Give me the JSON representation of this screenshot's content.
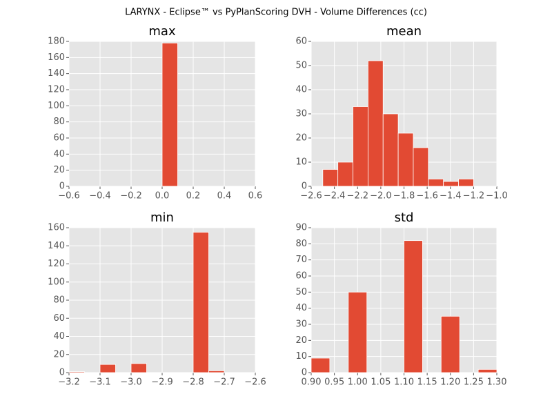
{
  "title": "LARYNX - Eclipse™ vs PyPlanScoring DVH - Volume Differences (cc)",
  "chart_data": [
    {
      "type": "histogram",
      "title": "max",
      "bins": [
        -0.5,
        -0.4,
        -0.3,
        -0.2,
        -0.1,
        0.0,
        0.1,
        0.2,
        0.3,
        0.4,
        0.5
      ],
      "values": [
        0,
        0,
        0,
        0,
        0,
        178,
        0,
        0,
        0,
        0
      ],
      "color": "#e24a33",
      "grid": true,
      "xlim": [
        -0.6,
        0.6
      ],
      "ylim": [
        0,
        180
      ],
      "xticks": [
        {
          "value": -0.6,
          "label": "−0.6"
        },
        {
          "value": -0.4,
          "label": "−0.4"
        },
        {
          "value": -0.2,
          "label": "−0.2"
        },
        {
          "value": 0.0,
          "label": "0.0"
        },
        0.2,
        0.4,
        0.6
      ],
      "yticks": [
        0,
        20,
        40,
        60,
        80,
        100,
        120,
        140,
        160,
        180
      ]
    },
    {
      "type": "histogram",
      "title": "mean",
      "bins": [
        -2.5,
        -2.37,
        -2.24,
        -2.11,
        -1.98,
        -1.85,
        -1.72,
        -1.59,
        -1.46,
        -1.33,
        -1.2
      ],
      "values": [
        7,
        10,
        33,
        52,
        30,
        22,
        16,
        3,
        2,
        3
      ],
      "color": "#e24a33",
      "grid": true,
      "xlim": [
        -2.6,
        -1.0
      ],
      "ylim": [
        0,
        60
      ],
      "xticks": [
        {
          "value": -2.6,
          "label": "−2.6"
        },
        {
          "value": -2.4,
          "label": "−2.4"
        },
        {
          "value": -2.2,
          "label": "−2.2"
        },
        {
          "value": -2.0,
          "label": "−2.0"
        },
        {
          "value": -1.8,
          "label": "−1.8"
        },
        {
          "value": -1.6,
          "label": "−1.6"
        },
        {
          "value": -1.4,
          "label": "−1.4"
        },
        {
          "value": -1.2,
          "label": "−1.2"
        },
        {
          "value": -1.0,
          "label": "−1.0"
        }
      ],
      "yticks": [
        0,
        10,
        20,
        30,
        40,
        50,
        60
      ]
    },
    {
      "type": "histogram",
      "title": "min",
      "bins": [
        -3.2,
        -3.15,
        -3.1,
        -3.05,
        -3.0,
        -2.95,
        -2.9,
        -2.85,
        -2.8,
        -2.75,
        -2.7
      ],
      "values": [
        1,
        0,
        9,
        0,
        10,
        0,
        0,
        0,
        155,
        2
      ],
      "color": "#e24a33",
      "grid": true,
      "xlim": [
        -3.2,
        -2.6
      ],
      "ylim": [
        0,
        160
      ],
      "xticks": [
        {
          "value": -3.2,
          "label": "−3.2"
        },
        {
          "value": -3.1,
          "label": "−3.1"
        },
        {
          "value": -3.0,
          "label": "−3.0"
        },
        {
          "value": -2.9,
          "label": "−2.9"
        },
        {
          "value": -2.8,
          "label": "−2.8"
        },
        {
          "value": -2.7,
          "label": "−2.7"
        },
        {
          "value": -2.6,
          "label": "−2.6"
        }
      ],
      "yticks": [
        0,
        20,
        40,
        60,
        80,
        100,
        120,
        140,
        160
      ]
    },
    {
      "type": "histogram",
      "title": "std",
      "bins": [
        0.9,
        0.94,
        0.98,
        1.02,
        1.06,
        1.1,
        1.14,
        1.18,
        1.22,
        1.26,
        1.3
      ],
      "values": [
        9,
        0,
        50,
        0,
        0,
        82,
        0,
        35,
        0,
        2
      ],
      "color": "#e24a33",
      "grid": true,
      "xlim": [
        0.9,
        1.3
      ],
      "ylim": [
        0,
        90
      ],
      "xticks": [
        {
          "value": 0.9,
          "label": "0.90"
        },
        0.95,
        {
          "value": 1.0,
          "label": "1.00"
        },
        1.05,
        {
          "value": 1.1,
          "label": "1.10"
        },
        1.15,
        {
          "value": 1.2,
          "label": "1.20"
        },
        1.25,
        {
          "value": 1.3,
          "label": "1.30"
        }
      ],
      "yticks": [
        0,
        10,
        20,
        30,
        40,
        50,
        60,
        70,
        80,
        90
      ]
    }
  ]
}
